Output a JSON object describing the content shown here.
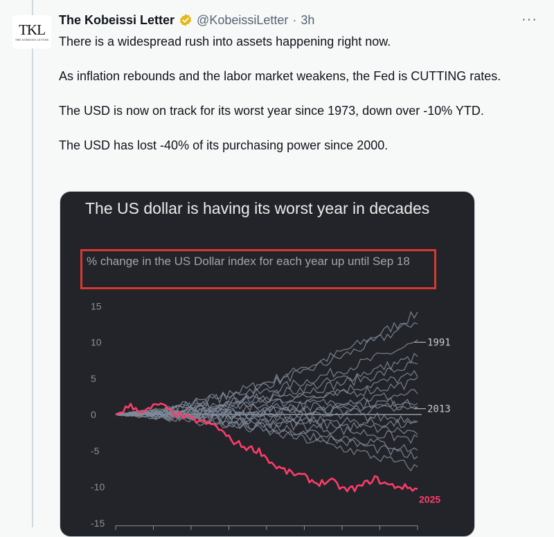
{
  "tweet": {
    "author_name": "The Kobeissi Letter",
    "handle": "@KobeissiLetter",
    "separator": "·",
    "time": "3h",
    "more": "···",
    "avatar": {
      "monogram": "TKL",
      "subtext": "THE KOBEISSI LETTER"
    },
    "paragraphs": [
      "There is a widespread rush into assets happening right now.",
      "As inflation rebounds and the labor market weakens, the Fed is CUTTING rates.",
      "The USD is now on track for its worst year since 1973, down over -10% YTD.",
      "The USD has lost -40% of its purchasing power since 2000."
    ]
  },
  "colors": {
    "accent_2025": "#ff3c6a",
    "history_lines": "#7f8b9a",
    "highlight_box": "#d93831",
    "verified_badge": "#e2b719"
  },
  "chart_data": {
    "type": "line",
    "title": "The US dollar is having its worst year in decades",
    "subtitle": "% change in the US Dollar index for each year up until Sep 18",
    "ylim": [
      -15,
      15
    ],
    "yticks": [
      "15",
      "10",
      "5",
      "0",
      "-5",
      "-10",
      "-15"
    ],
    "yticks_values": [
      15,
      10,
      5,
      0,
      -5,
      -10,
      -15
    ],
    "series": [
      {
        "name": "1991",
        "end_value": 10,
        "highlight": false
      },
      {
        "name": "2013",
        "end_value": 0.8,
        "highlight": false
      },
      {
        "name": "2025",
        "end_value": -10.3,
        "highlight": true,
        "values": [
          0,
          1.2,
          0.3,
          1.5,
          0.2,
          -0.5,
          -1.0,
          -1.6,
          -3.5,
          -4.5,
          -5.0,
          -7.0,
          -8.0,
          -8.5,
          -9.5,
          -9.2,
          -10.5,
          -10.0,
          -8.8,
          -9.8,
          -10.0,
          -10.3
        ]
      }
    ],
    "background_series_count": 18
  }
}
